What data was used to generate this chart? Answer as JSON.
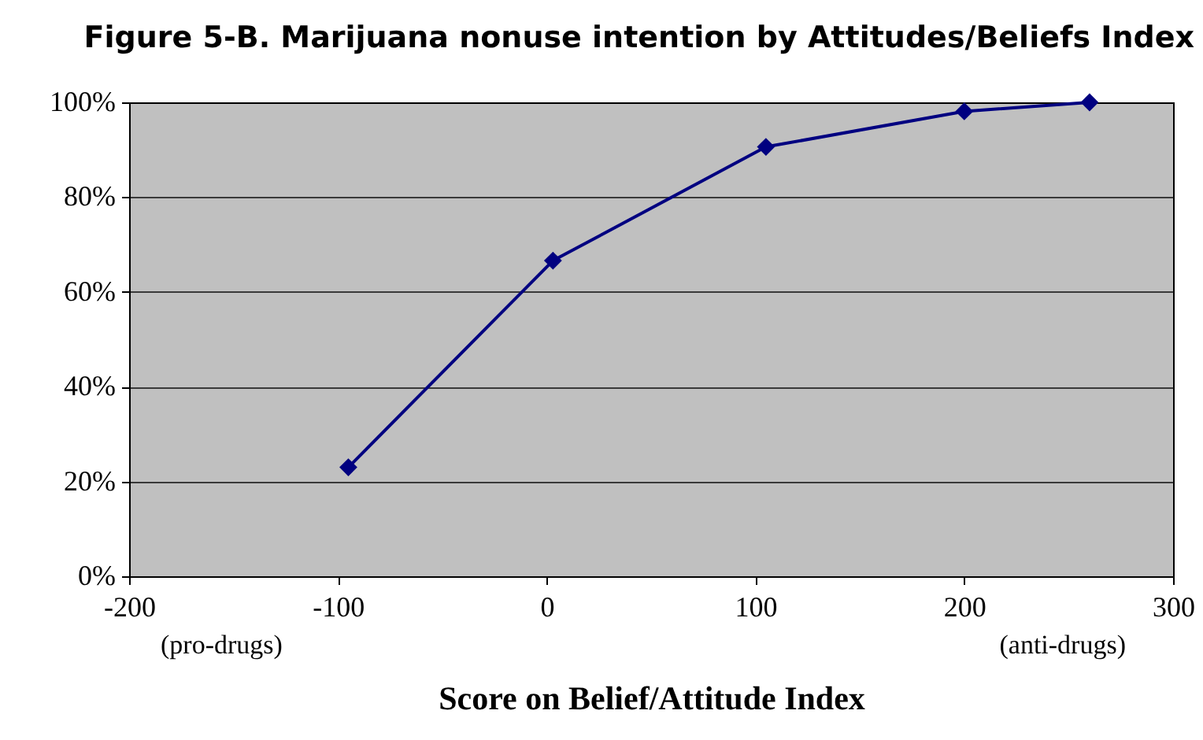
{
  "chart_data": {
    "type": "line",
    "title": "Figure 5-B. Marijuana nonuse intention by Attitudes/Beliefs Index",
    "xlabel": "Score on Belief/Attitude Index",
    "x": [
      -95,
      3,
      105,
      200,
      260
    ],
    "series": [
      {
        "color": "#000080",
        "values": [
          23,
          66.6,
          90.6,
          98.1,
          100
        ]
      }
    ],
    "xlim": [
      -200,
      300
    ],
    "xticks": [
      -200,
      -100,
      0,
      100,
      200,
      300
    ],
    "ylim": [
      0,
      100
    ],
    "yticks": [
      {
        "value": 0,
        "label": "0%"
      },
      {
        "value": 20,
        "label": "20%"
      },
      {
        "value": 40,
        "label": "40%"
      },
      {
        "value": 60,
        "label": "60%"
      },
      {
        "value": 80,
        "label": "80%"
      },
      {
        "value": 100,
        "label": "100%"
      }
    ],
    "annotations": [
      "(pro-drugs)",
      "(anti-drugs)"
    ],
    "grid": "y",
    "marker": "diamond",
    "line_style": "solid",
    "legend": false
  }
}
